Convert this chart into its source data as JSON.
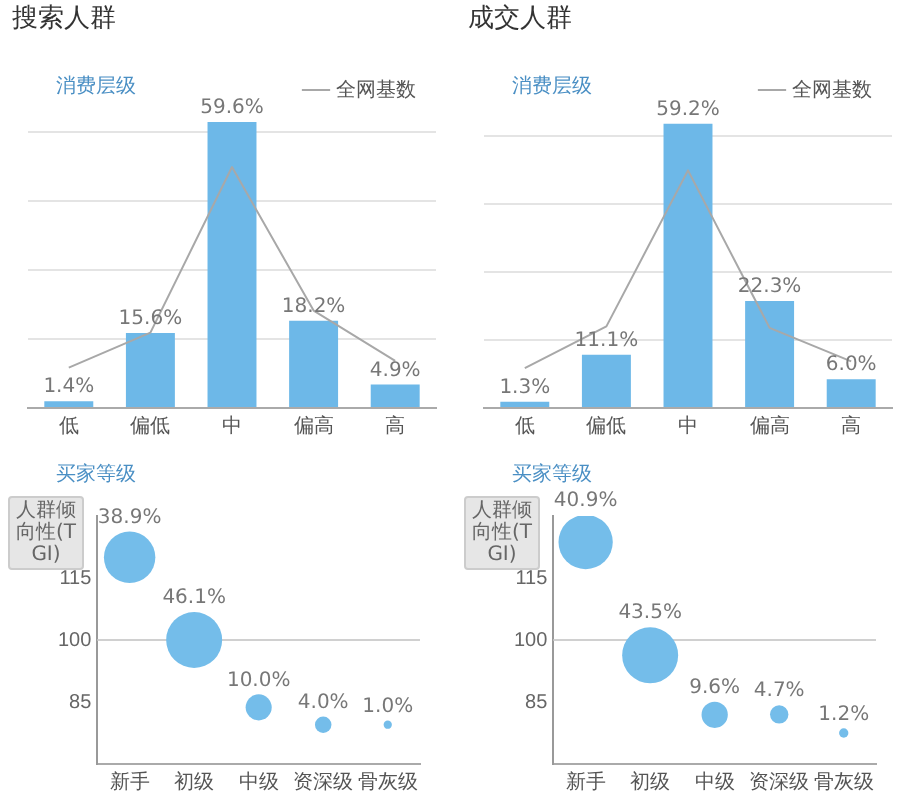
{
  "chart_data": [
    {
      "type": "bar",
      "title": "搜索人群",
      "subtitle": "消费层级",
      "categories": [
        "低",
        "偏低",
        "中",
        "偏高",
        "高"
      ],
      "series": [
        {
          "type": "bar",
          "color": "#6db8e8",
          "values": [
            1.4,
            15.6,
            59.6,
            18.2,
            4.9
          ],
          "value_labels": [
            "1.4%",
            "15.6%",
            "59.6%",
            "18.2%",
            "4.9%"
          ]
        },
        {
          "type": "line",
          "name": "全网基数",
          "color": "#a8a8a8",
          "values": [
            8.4,
            15.7,
            50.2,
            20.3,
            9.8
          ]
        }
      ],
      "yticks": [
        {
          "value": 0,
          "label": null
        },
        {
          "value": 14.4,
          "label": null
        },
        {
          "value": 28.7,
          "label": null
        },
        {
          "value": 43.1,
          "label": null
        },
        {
          "value": 57.5,
          "label": null
        }
      ],
      "tick_labels": "x",
      "grid": "y",
      "legend": "top right",
      "marker": "none"
    },
    {
      "type": "bar",
      "title": "成交人群",
      "subtitle": "消费层级",
      "categories": [
        "低",
        "偏低",
        "中",
        "偏高",
        "高"
      ],
      "series": [
        {
          "type": "bar",
          "color": "#6db8e8",
          "values": [
            1.3,
            11.1,
            59.2,
            22.3,
            6.0
          ],
          "value_labels": [
            "1.3%",
            "11.1%",
            "59.2%",
            "22.3%",
            "6.0%"
          ]
        },
        {
          "type": "line",
          "name": "全网基数",
          "color": "#a8a8a8",
          "values": [
            8.3,
            17.0,
            49.5,
            16.7,
            9.7
          ]
        }
      ],
      "yticks": [
        {
          "value": 0,
          "label": null
        },
        {
          "value": 14.2,
          "label": null
        },
        {
          "value": 28.3,
          "label": null
        },
        {
          "value": 42.5,
          "label": null
        },
        {
          "value": 56.7,
          "label": null
        }
      ],
      "tick_labels": "x",
      "grid": "y",
      "legend": "top right",
      "marker": "none"
    },
    {
      "type": "bubble",
      "title": "买家等级",
      "ylabel": "人群倾向性(TGI)",
      "categories": [
        "新手",
        "初级",
        "中级",
        "资深级",
        "骨灰级"
      ],
      "values": [
        120,
        100,
        83.7,
        79.5,
        79.5
      ],
      "sizes": [
        38.9,
        46.1,
        10.0,
        4.0,
        1.0
      ],
      "value_labels": [
        "38.9%",
        "46.1%",
        "10.0%",
        "4.0%",
        "1.0%"
      ],
      "color": "#74bdea",
      "ylim": [
        70,
        130
      ],
      "yticks": [
        85,
        100,
        115
      ],
      "ref_lines": [
        {
          "axis": "y",
          "value": 100,
          "color": "#d0d0d0"
        }
      ]
    },
    {
      "type": "bubble",
      "title": "买家等级",
      "ylabel": "人群倾向性(TGI)",
      "categories": [
        "新手",
        "初级",
        "中级",
        "资深级",
        "骨灰级"
      ],
      "values": [
        123.7,
        96.3,
        81.9,
        82,
        77.5
      ],
      "sizes": [
        40.9,
        43.5,
        9.6,
        4.7,
        1.2
      ],
      "value_labels": [
        "40.9%",
        "43.5%",
        "9.6%",
        "4.7%",
        "1.2%"
      ],
      "color": "#74bdea",
      "ylim": [
        70,
        130
      ],
      "yticks": [
        85,
        100,
        115
      ],
      "ref_lines": [
        {
          "axis": "y",
          "value": 100,
          "color": "#d0d0d0"
        }
      ]
    }
  ]
}
